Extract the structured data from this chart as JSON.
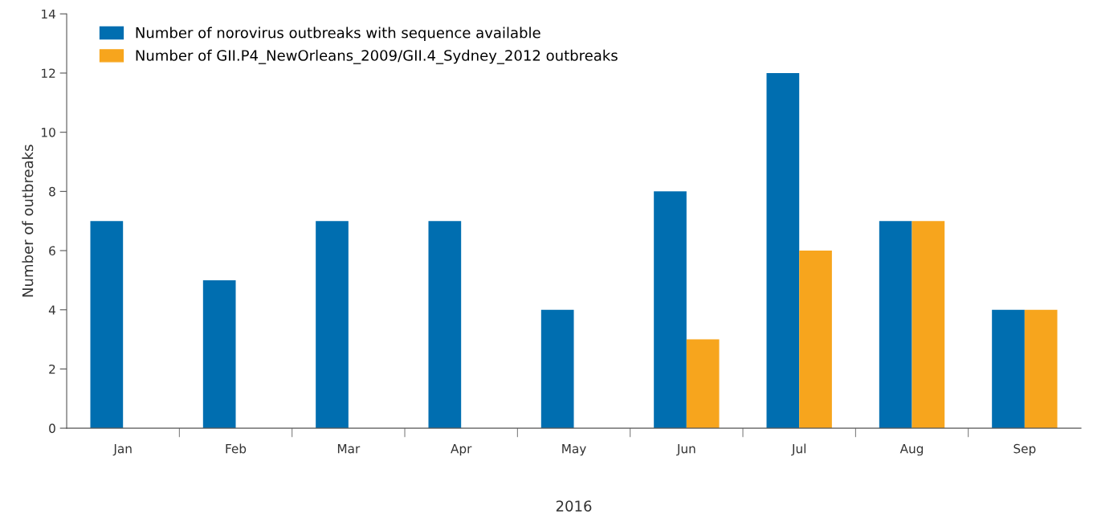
{
  "chart_data": {
    "type": "bar",
    "xlabel": "2016",
    "ylabel": "Number of outbreaks",
    "categories": [
      "Jan",
      "Feb",
      "Mar",
      "Apr",
      "May",
      "Jun",
      "Jul",
      "Aug",
      "Sep"
    ],
    "series": [
      {
        "name": "Number of norovirus outbreaks with sequence available",
        "color": "#006eb0",
        "values": [
          7,
          5,
          7,
          7,
          4,
          8,
          12,
          7,
          4
        ]
      },
      {
        "name": "Number of GII.P4_NewOrleans_2009/GII.4_Sydney_2012 outbreaks",
        "color": "#f7a51d",
        "values": [
          0,
          0,
          0,
          0,
          0,
          3,
          6,
          7,
          4
        ]
      }
    ],
    "ylim": [
      0,
      14
    ],
    "yticks": [
      0,
      2,
      4,
      6,
      8,
      10,
      12,
      14
    ],
    "grid": false,
    "legend": "top left"
  }
}
